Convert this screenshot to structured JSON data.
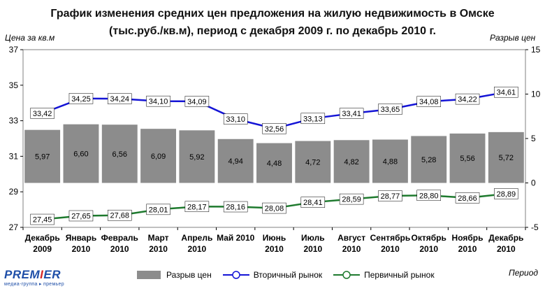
{
  "title_line1": "График изменения средних цен предложения на жилую недвижимость в Омске",
  "title_line2": "(тыс.руб./кв.м), период с декабря 2009 г. по декабрь 2010 г.",
  "logo": {
    "brand_a": "PREM",
    "brand_b": "I",
    "brand_c": "ER",
    "subtitle": "медиа-группа ▸ премьер"
  },
  "colors": {
    "bar": "#8c8c8c",
    "secondary": "#1414d6",
    "primary": "#1e7a2e"
  },
  "chart_data": {
    "type": "bar+line",
    "categories": [
      [
        "Декабрь",
        "2009"
      ],
      [
        "Январь",
        "2010"
      ],
      [
        "Февраль",
        "2010"
      ],
      [
        "Март",
        "2010"
      ],
      [
        "Апрель",
        "2010"
      ],
      [
        "Май 2010",
        ""
      ],
      [
        "Июнь",
        "2010"
      ],
      [
        "Июль",
        "2010"
      ],
      [
        "Август",
        "2010"
      ],
      [
        "Сентябрь",
        "2010"
      ],
      [
        "Октябрь",
        "2010"
      ],
      [
        "Ноябрь",
        "2010"
      ],
      [
        "Декабрь",
        "2010"
      ]
    ],
    "left_axis": {
      "label": "Цена за кв.м",
      "min": 27,
      "max": 37,
      "ticks": [
        27,
        29,
        31,
        33,
        35,
        37
      ]
    },
    "right_axis": {
      "label": "Разрыв цен",
      "min": -5,
      "max": 15,
      "ticks": [
        -5,
        0,
        5,
        10,
        15
      ]
    },
    "xlabel": "Период",
    "series": [
      {
        "name": "Разрыв цен",
        "type": "bar",
        "axis": "right",
        "values": [
          5.97,
          6.6,
          6.56,
          6.09,
          5.92,
          4.94,
          4.48,
          4.72,
          4.82,
          4.88,
          5.28,
          5.56,
          5.72
        ],
        "labels": [
          "5,97",
          "6,60",
          "6,56",
          "6,09",
          "5,92",
          "4,94",
          "4,48",
          "4,72",
          "4,82",
          "4,88",
          "5,28",
          "5,56",
          "5,72"
        ]
      },
      {
        "name": "Вторичный рынок",
        "type": "line",
        "axis": "left",
        "values": [
          33.42,
          34.25,
          34.24,
          34.1,
          34.09,
          33.1,
          32.56,
          33.13,
          33.41,
          33.65,
          34.08,
          34.22,
          34.61
        ],
        "labels": [
          "33,42",
          "34,25",
          "34,24",
          "34,10",
          "34,09",
          "33,10",
          "32,56",
          "33,13",
          "33,41",
          "33,65",
          "34,08",
          "34,22",
          "34,61"
        ]
      },
      {
        "name": "Первичный рынок",
        "type": "line",
        "axis": "left",
        "values": [
          27.45,
          27.65,
          27.68,
          28.01,
          28.17,
          28.16,
          28.08,
          28.41,
          28.59,
          28.77,
          28.8,
          28.66,
          28.89
        ],
        "labels": [
          "27,45",
          "27,65",
          "27,68",
          "28,01",
          "28,17",
          "28,16",
          "28,08",
          "28,41",
          "28,59",
          "28,77",
          "28,80",
          "28,66",
          "28,89"
        ]
      }
    ]
  }
}
